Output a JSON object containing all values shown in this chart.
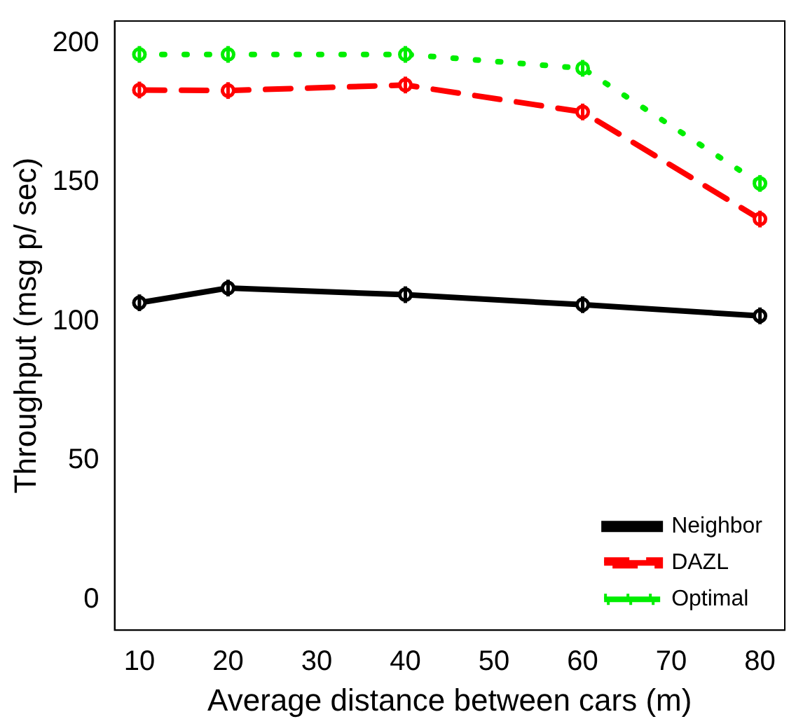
{
  "chart_data": {
    "type": "line",
    "xlabel": "Average distance between cars (m)",
    "ylabel": "Throughput (msg p/ sec)",
    "x": [
      10,
      20,
      40,
      60,
      80
    ],
    "series": [
      {
        "name": "Neighbor",
        "color": "#000000",
        "line_style": "solid",
        "values": [
          106.7,
          112,
          109.6,
          106,
          102
        ],
        "errors": [
          3,
          3,
          3,
          3,
          3
        ]
      },
      {
        "name": "DAZL",
        "color": "#ff0000",
        "line_style": "dashed",
        "values": [
          183.2,
          183,
          185,
          175.3,
          136.8
        ],
        "errors": [
          3,
          3,
          3,
          3,
          3
        ]
      },
      {
        "name": "Optimal",
        "color": "#00ee00",
        "line_style": "dotted",
        "values": [
          196,
          196,
          196,
          191,
          149.6
        ],
        "errors": [
          3,
          3,
          3,
          3,
          3
        ]
      }
    ],
    "xlim": [
      7.2,
      82.8
    ],
    "xticks": [
      10,
      20,
      30,
      40,
      50,
      60,
      70,
      80
    ],
    "ylim": [
      -11,
      208
    ],
    "yticks": [
      0,
      50,
      100,
      150,
      200
    ],
    "grid": false,
    "legend": "bottom right",
    "marker": "circle"
  }
}
